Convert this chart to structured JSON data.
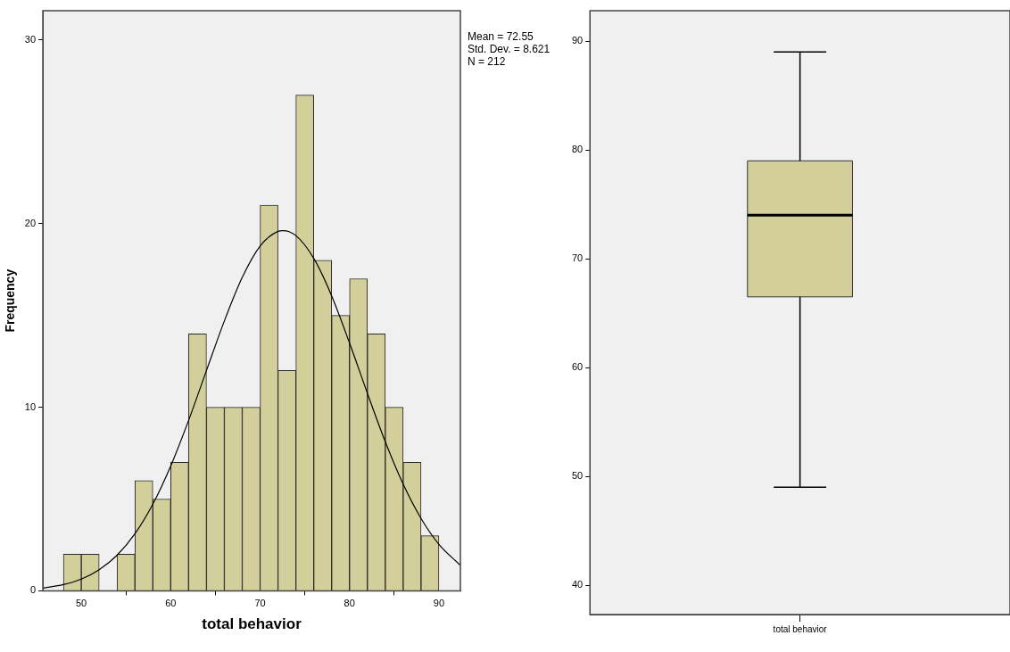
{
  "chart_data": [
    {
      "type": "histogram",
      "xlabel": "total behavior",
      "ylabel": "Frequency",
      "bins": [
        48,
        50,
        52,
        54,
        56,
        58,
        60,
        62,
        64,
        66,
        68,
        70,
        72,
        74,
        76,
        78,
        80,
        82,
        84,
        86,
        88,
        90
      ],
      "values": [
        2,
        2,
        0,
        2,
        6,
        5,
        7,
        14,
        10,
        10,
        10,
        21,
        12,
        27,
        18,
        15,
        17,
        14,
        10,
        7,
        3
      ],
      "color": "#d3cf9b",
      "series": [
        {
          "type": "line",
          "color": "#000000",
          "x": [
            45.7,
            48,
            50,
            52,
            54,
            56,
            58,
            60,
            62,
            64,
            66,
            68,
            70,
            72,
            72.55,
            74,
            76,
            78,
            80,
            82,
            84,
            86,
            88,
            90,
            92.4
          ],
          "values": [
            0.15,
            0.34,
            0.64,
            1.15,
            1.94,
            3.11,
            4.72,
            6.8,
            9.28,
            12,
            14.7,
            17.07,
            18.78,
            19.58,
            19.62,
            19.35,
            18.11,
            16.07,
            13.5,
            10.76,
            8.12,
            5.81,
            3.94,
            2.53,
            1.39
          ]
        }
      ],
      "xlim": [
        45.7,
        92.4
      ],
      "xticks": [
        50,
        60,
        70,
        80,
        90
      ],
      "ylim": [
        0,
        31.6
      ],
      "yticks": [
        0,
        10,
        20,
        30
      ],
      "grid": false,
      "legend": false,
      "annotations": [
        "Mean = 72.55",
        "Std. Dev. = 8.621",
        "N = 212"
      ]
    },
    {
      "type": "box",
      "categories": [
        "total behavior"
      ],
      "color": "#d3cf9b",
      "boxes": [
        {
          "low": 49,
          "q1": 66.5,
          "median": 74,
          "q3": 79,
          "high": 89
        }
      ],
      "ylim": [
        37.3,
        92.8
      ],
      "yticks": [
        40,
        50,
        60,
        70,
        80,
        90
      ],
      "grid": false,
      "legend": false
    }
  ]
}
